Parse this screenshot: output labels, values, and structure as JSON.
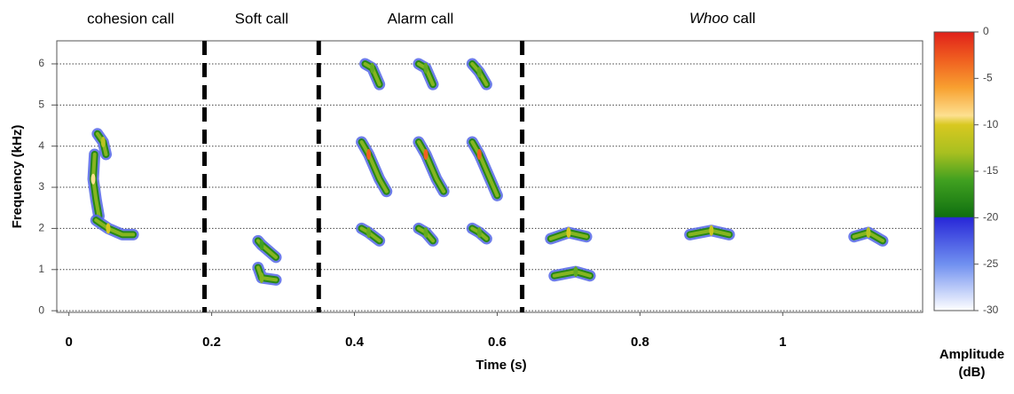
{
  "chart_data": {
    "type": "spectrogram",
    "x_label": "Time (s)",
    "y_label": "Frequency (kHz)",
    "xlim": [
      -0.017,
      1.196
    ],
    "ylim": [
      -0.04,
      6.56
    ],
    "xticks": [
      0,
      0.2,
      0.4,
      0.6,
      0.8,
      1
    ],
    "yticks": [
      0,
      1,
      2,
      3,
      4,
      5,
      6
    ],
    "grid": true,
    "dividers": [
      0.19,
      0.35,
      0.635
    ],
    "sections": [
      {
        "label": "cohesion call",
        "italic_first_word": false
      },
      {
        "label": "Soft call",
        "italic_first_word": false
      },
      {
        "label": "Alarm call",
        "italic_first_word": false
      },
      {
        "label": "Whoo call",
        "italic_first_word": true
      }
    ],
    "contours": [
      {
        "t": [
          0.04,
          0.048,
          0.052
        ],
        "f": [
          4.3,
          4.1,
          3.8
        ],
        "db": -12
      },
      {
        "t": [
          0.036,
          0.034,
          0.038,
          0.042
        ],
        "f": [
          3.8,
          3.2,
          2.7,
          2.3
        ],
        "db": -9
      },
      {
        "t": [
          0.038,
          0.055,
          0.075,
          0.09
        ],
        "f": [
          2.2,
          2.0,
          1.85,
          1.85
        ],
        "db": -10
      },
      {
        "t": [
          0.265,
          0.27,
          0.29
        ],
        "f": [
          1.7,
          1.6,
          1.3
        ],
        "db": -16
      },
      {
        "t": [
          0.265,
          0.27,
          0.29
        ],
        "f": [
          1.05,
          0.8,
          0.75
        ],
        "db": -14
      },
      {
        "t": [
          0.415,
          0.425,
          0.435
        ],
        "f": [
          6.0,
          5.9,
          5.5
        ],
        "db": -15
      },
      {
        "t": [
          0.41,
          0.42,
          0.435,
          0.445
        ],
        "f": [
          4.1,
          3.8,
          3.2,
          2.9
        ],
        "db": -3
      },
      {
        "t": [
          0.41,
          0.42,
          0.435
        ],
        "f": [
          2.0,
          1.9,
          1.7
        ],
        "db": -15
      },
      {
        "t": [
          0.49,
          0.5,
          0.51
        ],
        "f": [
          6.0,
          5.9,
          5.5
        ],
        "db": -15
      },
      {
        "t": [
          0.49,
          0.5,
          0.515,
          0.525
        ],
        "f": [
          4.1,
          3.8,
          3.2,
          2.9
        ],
        "db": -3
      },
      {
        "t": [
          0.49,
          0.5,
          0.51
        ],
        "f": [
          2.0,
          1.9,
          1.7
        ],
        "db": -15
      },
      {
        "t": [
          0.565,
          0.575,
          0.585
        ],
        "f": [
          6.0,
          5.8,
          5.5
        ],
        "db": -15
      },
      {
        "t": [
          0.565,
          0.575,
          0.59,
          0.6
        ],
        "f": [
          4.1,
          3.8,
          3.2,
          2.8
        ],
        "db": -3
      },
      {
        "t": [
          0.565,
          0.575,
          0.585
        ],
        "f": [
          2.0,
          1.9,
          1.75
        ],
        "db": -15
      },
      {
        "t": [
          0.675,
          0.7,
          0.725
        ],
        "f": [
          1.75,
          1.9,
          1.8
        ],
        "db": -10
      },
      {
        "t": [
          0.68,
          0.71,
          0.73
        ],
        "f": [
          0.85,
          0.95,
          0.85
        ],
        "db": -15
      },
      {
        "t": [
          0.87,
          0.9,
          0.925
        ],
        "f": [
          1.85,
          1.95,
          1.85
        ],
        "db": -11
      },
      {
        "t": [
          1.1,
          1.12,
          1.14
        ],
        "f": [
          1.8,
          1.9,
          1.7
        ],
        "db": -12
      }
    ],
    "colorbar": {
      "label": "Amplitude (dB)",
      "range": [
        -30,
        0
      ],
      "ticks": [
        0,
        -5,
        -10,
        -15,
        -20,
        -25,
        -30
      ],
      "stops": [
        {
          "value": 0,
          "color": "#e0201a"
        },
        {
          "value": -3,
          "color": "#f06020"
        },
        {
          "value": -6,
          "color": "#f8a030"
        },
        {
          "value": -9,
          "color": "#fde090"
        },
        {
          "value": -10,
          "color": "#d8c820"
        },
        {
          "value": -13,
          "color": "#a8c020"
        },
        {
          "value": -16,
          "color": "#40a020"
        },
        {
          "value": -19.9,
          "color": "#107010"
        },
        {
          "value": -20,
          "color": "#2828d8"
        },
        {
          "value": -25,
          "color": "#7090f0"
        },
        {
          "value": -30,
          "color": "#ffffff"
        }
      ]
    }
  }
}
